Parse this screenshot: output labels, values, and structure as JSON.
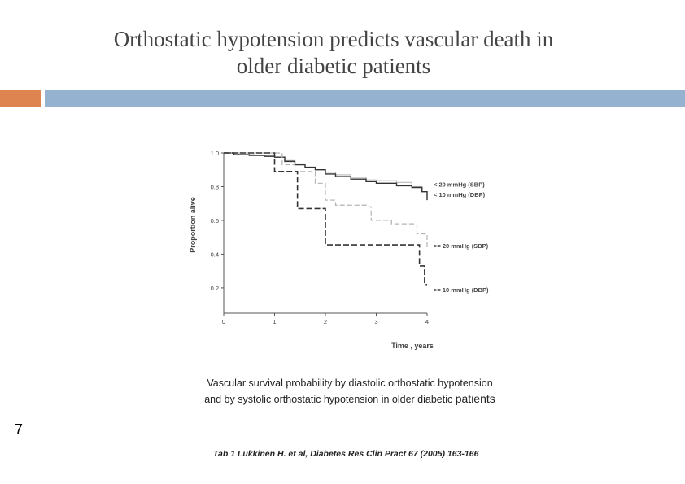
{
  "slide": {
    "title_line1": "Orthostatic hypotension predicts vascular death in",
    "title_line2": "older diabetic patients",
    "caption_line1": "Vascular survival probability by diastolic orthostatic hypotension",
    "caption_line2_start": "and by systolic orthostatic hypotension in older diabetic ",
    "caption_line2_end": "patients",
    "slide_number": "7",
    "citation": "Tab 1 Lukkinen H. et al, Diabetes Res Clin Pract 67 (2005) 163-166",
    "colors": {
      "accent_orange": "#dd8451",
      "accent_blue": "#95b3d0"
    }
  },
  "chart_data": {
    "type": "line",
    "title": "",
    "xlabel": "Time , years",
    "ylabel": "Proportion alive",
    "xlim": [
      0,
      4
    ],
    "ylim": [
      0.05,
      1.0
    ],
    "x_ticks": [
      0,
      1,
      2,
      3,
      4
    ],
    "x_tick_labels": [
      "0",
      "1",
      "2",
      "3",
      "4"
    ],
    "y_ticks": [
      0.2,
      0.4,
      0.6,
      0.8,
      1.0
    ],
    "y_tick_labels": [
      "0.2",
      "0.4",
      "0.6",
      "0.8",
      "1.0"
    ],
    "grid": false,
    "step": true,
    "series": [
      {
        "name": "< 20 mmHg (SBP)",
        "color": "#bbbbbb",
        "dash": "",
        "width": 1.1,
        "points": [
          [
            0,
            1.0
          ],
          [
            0.3,
            0.99
          ],
          [
            0.6,
            0.985
          ],
          [
            1.0,
            0.975
          ],
          [
            1.2,
            0.955
          ],
          [
            1.4,
            0.935
          ],
          [
            1.6,
            0.915
          ],
          [
            1.8,
            0.9
          ],
          [
            2.0,
            0.885
          ],
          [
            2.2,
            0.87
          ],
          [
            2.5,
            0.855
          ],
          [
            2.8,
            0.84
          ],
          [
            3.0,
            0.835
          ],
          [
            3.4,
            0.825
          ],
          [
            3.7,
            0.8
          ],
          [
            3.9,
            0.77
          ],
          [
            4.0,
            0.745
          ]
        ],
        "label_value": 0.815
      },
      {
        "name": "< 10 mmHg (DBP)",
        "color": "#333333",
        "dash": "",
        "width": 1.4,
        "points": [
          [
            0,
            1.0
          ],
          [
            0.2,
            0.99
          ],
          [
            0.5,
            0.985
          ],
          [
            0.8,
            0.98
          ],
          [
            1.0,
            0.975
          ],
          [
            1.2,
            0.95
          ],
          [
            1.4,
            0.93
          ],
          [
            1.6,
            0.915
          ],
          [
            1.8,
            0.9
          ],
          [
            2.0,
            0.875
          ],
          [
            2.2,
            0.86
          ],
          [
            2.5,
            0.845
          ],
          [
            2.8,
            0.83
          ],
          [
            3.0,
            0.82
          ],
          [
            3.4,
            0.805
          ],
          [
            3.7,
            0.795
          ],
          [
            3.9,
            0.77
          ],
          [
            4.0,
            0.72
          ]
        ],
        "label_value": 0.755
      },
      {
        "name": ">= 20 mmHg (SBP)",
        "color": "#b3b3b3",
        "dash": "6,3",
        "width": 1.2,
        "points": [
          [
            0,
            1.0
          ],
          [
            0.5,
            1.0
          ],
          [
            1.0,
            1.0
          ],
          [
            1.15,
            0.93
          ],
          [
            1.4,
            0.89
          ],
          [
            1.8,
            0.82
          ],
          [
            2.0,
            0.72
          ],
          [
            2.2,
            0.69
          ],
          [
            2.8,
            0.68
          ],
          [
            2.9,
            0.6
          ],
          [
            3.3,
            0.58
          ],
          [
            3.8,
            0.52
          ],
          [
            4.0,
            0.44
          ]
        ],
        "label_value": 0.45
      },
      {
        "name": ">= 10 mmHg (DBP)",
        "color": "#333333",
        "dash": "7,3",
        "width": 1.6,
        "points": [
          [
            0,
            1.0
          ],
          [
            0.5,
            1.0
          ],
          [
            1.0,
            1.0
          ],
          [
            1.0,
            0.89
          ],
          [
            1.45,
            0.88
          ],
          [
            1.45,
            0.67
          ],
          [
            2.0,
            0.67
          ],
          [
            2.0,
            0.455
          ],
          [
            3.85,
            0.455
          ],
          [
            3.85,
            0.33
          ],
          [
            3.95,
            0.33
          ],
          [
            3.95,
            0.22
          ],
          [
            4.0,
            0.22
          ]
        ],
        "label_value": 0.19
      }
    ]
  }
}
